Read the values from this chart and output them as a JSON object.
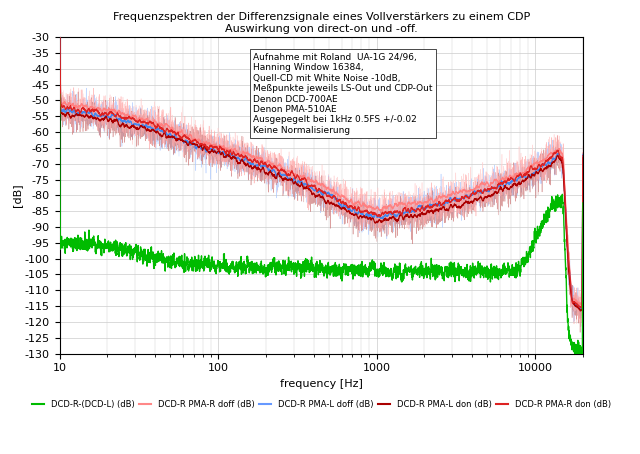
{
  "title_line1": "Frequenzspektren der Differenzsignale eines Vollverstärkers zu einem CDP",
  "title_line2": "Auswirkung von direct-on und -off.",
  "xlabel": "frequency [Hz]",
  "ylabel": "[dB]",
  "ylim": [
    -130,
    -30
  ],
  "xlim": [
    10,
    20000
  ],
  "yticks": [
    -30,
    -35,
    -40,
    -45,
    -50,
    -55,
    -60,
    -65,
    -70,
    -75,
    -80,
    -85,
    -90,
    -95,
    -100,
    -105,
    -110,
    -115,
    -120,
    -125,
    -130
  ],
  "xticks_major": [
    10,
    100,
    1000,
    10000
  ],
  "annotation": "Aufnahme mit Roland  UA-1G 24/96,\nHanning Window 16384,\nQuell-CD mit White Noise -10dB,\nMeßpunkte jeweils LS-Out und CDP-Out\nDenon DCD-700AE\nDenon PMA-510AE\nAusgepegelt bei 1kHz 0.5FS +/-0.02\nKeine Normalisierung",
  "legend_labels": [
    "DCD-R-(DCD-L) (dB)",
    "DCD-R PMA-R doff (dB)",
    "DCD-R PMA-L doff (dB)",
    "DCD-R PMA-L don (dB)",
    "DCD-R PMA-R don (dB)"
  ],
  "legend_colors": [
    "#00bb00",
    "#ff8888",
    "#6699ff",
    "#aa0000",
    "#dd2222"
  ],
  "background_color": "#ffffff",
  "grid_color": "#cccccc"
}
